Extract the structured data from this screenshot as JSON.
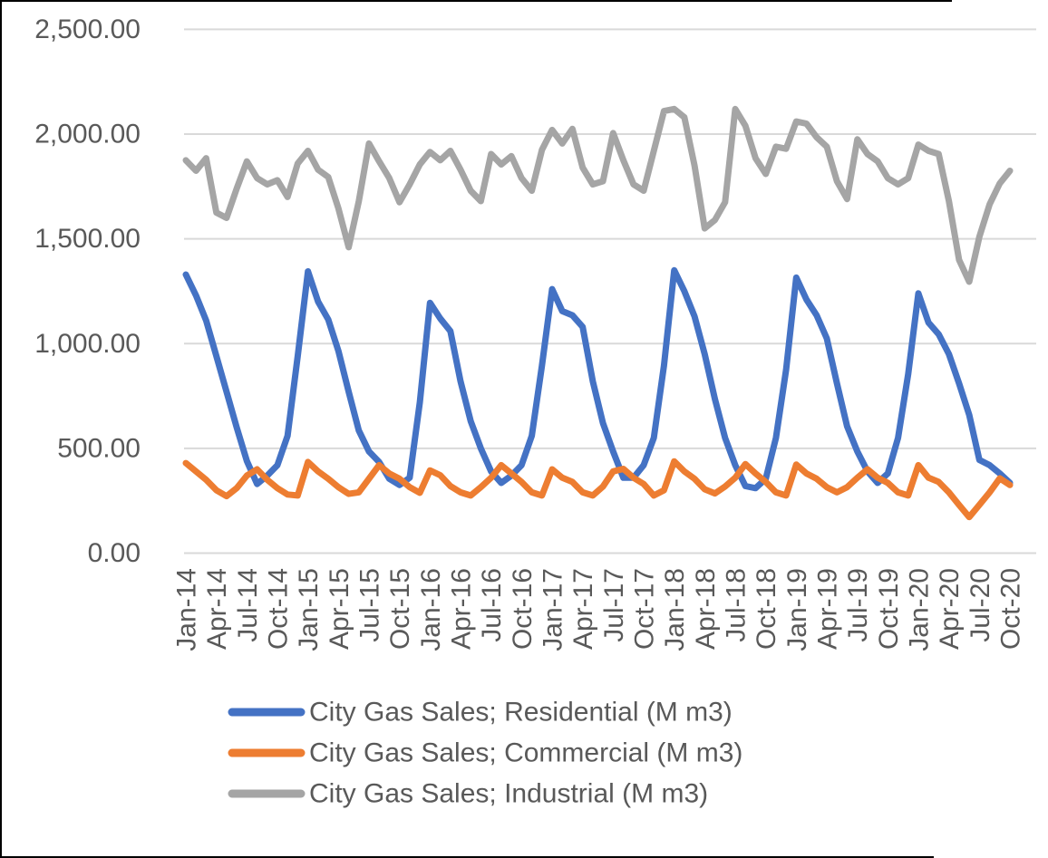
{
  "chart_data": {
    "type": "line",
    "title": "",
    "x_start": "Jan-14",
    "x_end": "Oct-20",
    "x_tick_every_months": 3,
    "x_ticklabels": [
      "Jan-14",
      "Apr-14",
      "Jul-14",
      "Oct-14",
      "Jan-15",
      "Apr-15",
      "Jul-15",
      "Oct-15",
      "Jan-16",
      "Apr-16",
      "Jul-16",
      "Oct-16",
      "Jan-17",
      "Apr-17",
      "Jul-17",
      "Oct-17",
      "Jan-18",
      "Apr-18",
      "Jul-18",
      "Oct-18",
      "Jan-19",
      "Apr-19",
      "Jul-19",
      "Oct-19",
      "Jan-20",
      "Apr-20",
      "Jul-20",
      "Oct-20"
    ],
    "ylim": [
      0,
      2500
    ],
    "y_tick_values": [
      0,
      500,
      1000,
      1500,
      2000,
      2500
    ],
    "y_ticklabels": [
      "0.00",
      "500.00",
      "1,000.00",
      "1,500.00",
      "2,000.00",
      "2,500.00"
    ],
    "grid": "horizontal-only",
    "legend_position": "bottom-left",
    "text_color": "#595959",
    "gridline_color": "#D9D9D9",
    "series": [
      {
        "name": "City Gas Sales; Residential (M m3)",
        "color": "#4472C4",
        "values": [
          1330,
          1230,
          1110,
          940,
          770,
          600,
          440,
          330,
          370,
          420,
          560,
          940,
          1345,
          1200,
          1115,
          965,
          770,
          585,
          485,
          435,
          355,
          325,
          360,
          720,
          1195,
          1120,
          1060,
          820,
          630,
          500,
          390,
          335,
          370,
          420,
          560,
          895,
          1260,
          1155,
          1135,
          1080,
          820,
          620,
          485,
          360,
          360,
          420,
          550,
          895,
          1350,
          1250,
          1130,
          950,
          735,
          550,
          420,
          320,
          310,
          355,
          550,
          875,
          1315,
          1210,
          1135,
          1025,
          810,
          605,
          485,
          390,
          335,
          380,
          550,
          855,
          1240,
          1100,
          1045,
          950,
          810,
          660,
          445,
          420,
          380,
          335
        ]
      },
      {
        "name": "City Gas Sales; Commercial (M m3)",
        "color": "#ED7D31",
        "values": [
          430,
          390,
          350,
          300,
          272,
          310,
          370,
          400,
          350,
          310,
          280,
          275,
          435,
          390,
          355,
          315,
          283,
          290,
          355,
          420,
          380,
          355,
          315,
          288,
          395,
          372,
          320,
          290,
          275,
          315,
          360,
          420,
          380,
          340,
          290,
          275,
          400,
          360,
          340,
          290,
          275,
          318,
          390,
          402,
          360,
          330,
          275,
          300,
          438,
          390,
          355,
          305,
          285,
          318,
          360,
          425,
          380,
          340,
          290,
          275,
          423,
          380,
          355,
          315,
          290,
          315,
          360,
          400,
          360,
          335,
          290,
          275,
          420,
          360,
          340,
          290,
          230,
          172,
          230,
          290,
          357,
          325
        ]
      },
      {
        "name": "City Gas Sales; Industrial (M m3)",
        "color": "#A5A5A5",
        "values": [
          1875,
          1825,
          1885,
          1625,
          1600,
          1740,
          1870,
          1790,
          1760,
          1780,
          1700,
          1860,
          1920,
          1830,
          1795,
          1645,
          1460,
          1680,
          1955,
          1870,
          1790,
          1675,
          1760,
          1855,
          1915,
          1875,
          1920,
          1830,
          1730,
          1680,
          1905,
          1855,
          1895,
          1790,
          1730,
          1925,
          2020,
          1955,
          2025,
          1840,
          1760,
          1775,
          2005,
          1875,
          1760,
          1730,
          1920,
          2110,
          2120,
          2080,
          1850,
          1550,
          1590,
          1675,
          2120,
          2040,
          1885,
          1810,
          1940,
          1930,
          2060,
          2050,
          1985,
          1940,
          1775,
          1690,
          1975,
          1905,
          1870,
          1790,
          1760,
          1790,
          1950,
          1920,
          1905,
          1680,
          1400,
          1295,
          1510,
          1665,
          1765,
          1825
        ]
      }
    ]
  }
}
